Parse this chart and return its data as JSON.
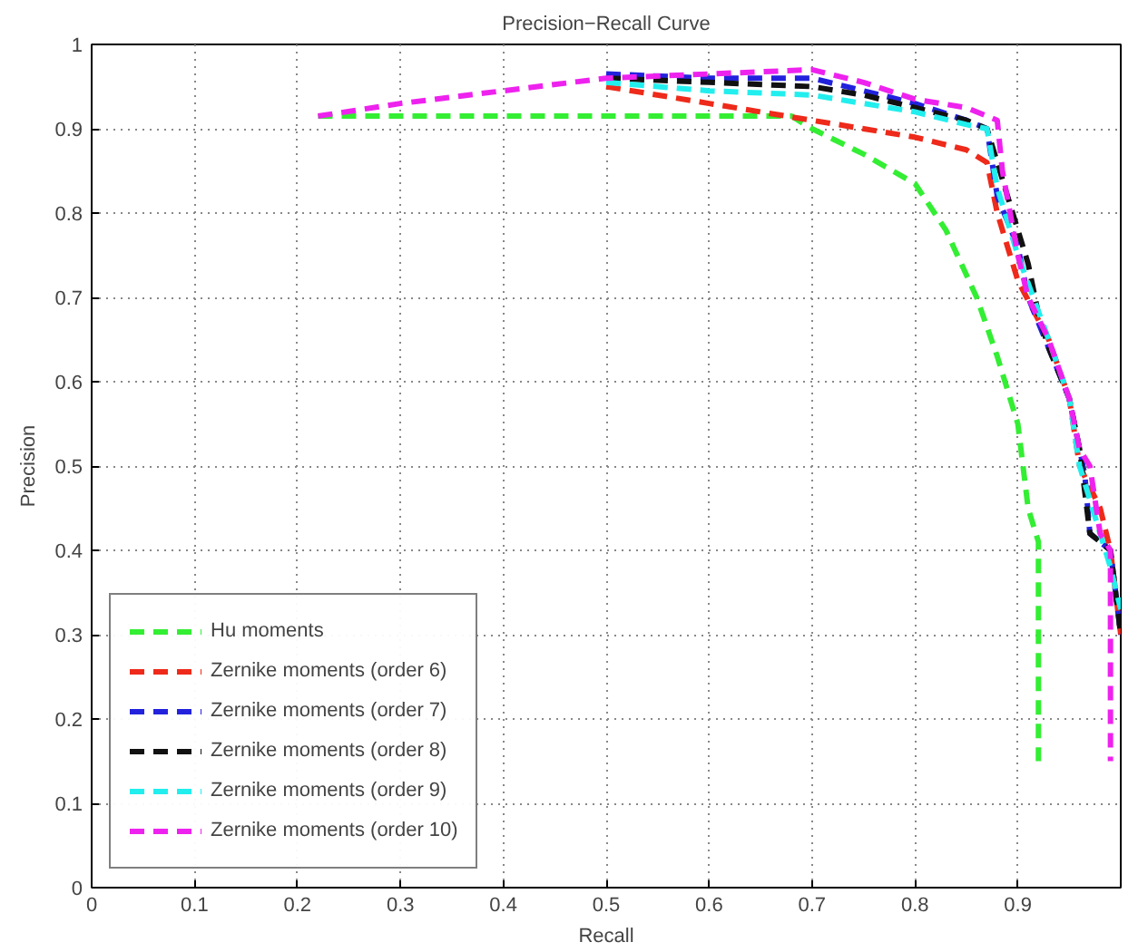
{
  "chart_data": {
    "type": "line",
    "title": "Precision−Recall Curve",
    "xlabel": "Recall",
    "ylabel": "Precision",
    "xlim": [
      0,
      1
    ],
    "xticks": [
      0,
      0.1,
      0.2,
      0.3,
      0.4,
      0.5,
      0.6,
      0.7,
      0.8,
      0.9,
      {
        "value": 1,
        "label": null
      }
    ],
    "ylim": [
      0,
      1
    ],
    "yticks": [
      0,
      0.1,
      0.2,
      0.3,
      0.4,
      0.5,
      0.6,
      0.7,
      0.8,
      0.9,
      1
    ],
    "grid": true,
    "legend": "bottom left",
    "line_style": "dashed",
    "marker": "none",
    "series": [
      {
        "name": "Hu moments",
        "color": "#33ee33",
        "x": [
          0.22,
          0.3,
          0.4,
          0.5,
          0.6,
          0.68,
          0.7,
          0.75,
          0.8,
          0.83,
          0.86,
          0.88,
          0.9,
          0.91,
          0.92,
          0.92
        ],
        "values": [
          0.915,
          0.915,
          0.915,
          0.915,
          0.915,
          0.915,
          0.9,
          0.87,
          0.835,
          0.78,
          0.7,
          0.63,
          0.55,
          0.45,
          0.41,
          0.15
        ]
      },
      {
        "name": "Zernike moments (order 6)",
        "color": "#ee2a1a",
        "x": [
          0.5,
          0.6,
          0.7,
          0.75,
          0.8,
          0.85,
          0.87,
          0.88,
          0.9,
          0.93,
          0.95,
          0.96,
          0.98,
          0.99,
          1.0
        ],
        "values": [
          0.95,
          0.93,
          0.91,
          0.9,
          0.89,
          0.875,
          0.86,
          0.8,
          0.72,
          0.65,
          0.58,
          0.5,
          0.45,
          0.4,
          0.3
        ]
      },
      {
        "name": "Zernike moments (order 7)",
        "color": "#2222dd",
        "x": [
          0.5,
          0.6,
          0.7,
          0.75,
          0.8,
          0.85,
          0.87,
          0.88,
          0.9,
          0.91,
          0.93,
          0.95,
          0.96,
          0.965,
          0.97,
          0.99,
          1.0
        ],
        "values": [
          0.965,
          0.96,
          0.96,
          0.945,
          0.93,
          0.91,
          0.9,
          0.82,
          0.76,
          0.7,
          0.64,
          0.58,
          0.52,
          0.49,
          0.42,
          0.4,
          0.3
        ]
      },
      {
        "name": "Zernike moments (order 8)",
        "color": "#111111",
        "x": [
          0.5,
          0.6,
          0.7,
          0.75,
          0.8,
          0.85,
          0.87,
          0.89,
          0.91,
          0.92,
          0.93,
          0.95,
          0.96,
          0.97,
          0.99,
          1.0
        ],
        "values": [
          0.96,
          0.955,
          0.95,
          0.94,
          0.925,
          0.91,
          0.9,
          0.82,
          0.74,
          0.68,
          0.64,
          0.58,
          0.52,
          0.42,
          0.4,
          0.3
        ]
      },
      {
        "name": "Zernike moments (order 9)",
        "color": "#22eeee",
        "x": [
          0.5,
          0.6,
          0.7,
          0.8,
          0.85,
          0.87,
          0.88,
          0.9,
          0.93,
          0.95,
          0.96,
          0.98,
          0.99,
          1.0
        ],
        "values": [
          0.955,
          0.945,
          0.94,
          0.92,
          0.905,
          0.9,
          0.83,
          0.75,
          0.65,
          0.58,
          0.5,
          0.42,
          0.38,
          0.33
        ]
      },
      {
        "name": "Zernike moments (order 10)",
        "color": "#ee22ee",
        "x": [
          0.22,
          0.3,
          0.4,
          0.5,
          0.6,
          0.7,
          0.75,
          0.8,
          0.85,
          0.88,
          0.885,
          0.9,
          0.91,
          0.93,
          0.95,
          0.96,
          0.97,
          0.98,
          0.99,
          0.99
        ],
        "values": [
          0.915,
          0.93,
          0.945,
          0.96,
          0.965,
          0.97,
          0.955,
          0.935,
          0.925,
          0.91,
          0.85,
          0.75,
          0.7,
          0.65,
          0.58,
          0.52,
          0.5,
          0.42,
          0.4,
          0.15
        ]
      }
    ]
  }
}
